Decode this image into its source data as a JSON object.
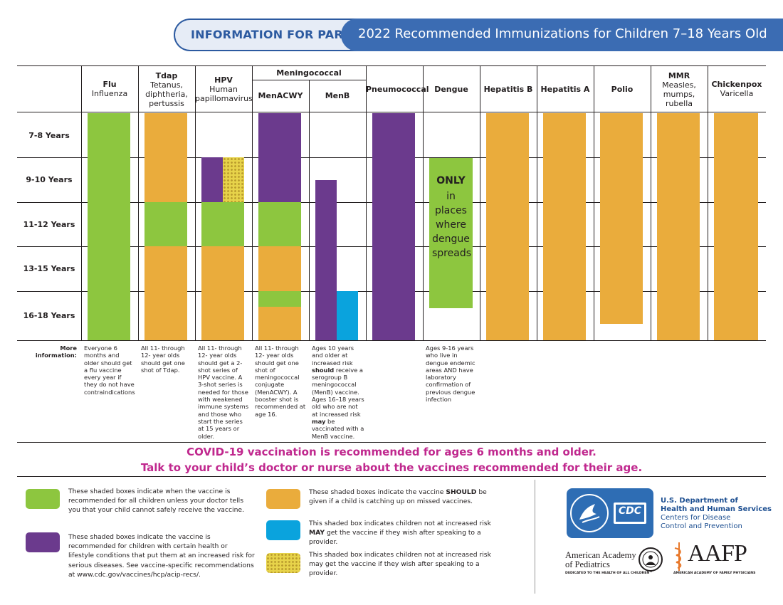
{
  "header": {
    "left_label": "INFORMATION FOR PARENTS",
    "title": "2022 Recommended Immunizations for Children 7–18 Years Old"
  },
  "colors": {
    "green": "#8dc63f",
    "orange": "#eaac3c",
    "purple": "#6b3a8d",
    "blue": "#0aa3dd",
    "yellow_dots": "#e7d34a",
    "covid": "#c0288e",
    "header_blue": "#3b6cb3"
  },
  "columns": {
    "flu": {
      "name": "Flu",
      "desc": "Influenza"
    },
    "tdap": {
      "name": "Tdap",
      "desc": "Tetanus, diphtheria, pertussis"
    },
    "hpv": {
      "name": "HPV",
      "desc": "Human papillomavirus"
    },
    "meningococcal": {
      "name": "Meningococcal"
    },
    "menacwy": {
      "name": "MenACWY"
    },
    "menb": {
      "name": "MenB"
    },
    "pneumococcal": {
      "name": "Pneumococcal"
    },
    "dengue": {
      "name": "Dengue"
    },
    "hepb": {
      "name": "Hepatitis B"
    },
    "hepa": {
      "name": "Hepatitis A"
    },
    "polio": {
      "name": "Polio"
    },
    "mmr": {
      "name": "MMR",
      "desc": "Measles, mumps, rubella"
    },
    "chickenpox": {
      "name": "Chickenpox",
      "desc": "Varicella"
    }
  },
  "rows": [
    "7-8 Years",
    "9-10 Years",
    "11-12 Years",
    "13-15 Years",
    "16-18 Years"
  ],
  "dengue_text": {
    "only": "ONLY",
    "rest": "in places where dengue spreads"
  },
  "more_info": {
    "label": "More information:",
    "flu": "Everyone 6 months and older should get a flu vaccine every year if they do not have contraindications",
    "tdap": "All 11- through 12- year olds should get one shot of Tdap.",
    "hpv": "All 11- through 12- year olds should get a 2-shot series of HPV vaccine. A 3-shot series is needed for those with weakened immune systems and those who start the series at 15 years or older.",
    "menacwy": "All 11- through 12- year olds should get one shot of meningococcal conjugate (MenACWY). A booster shot is recommended at age 16.",
    "menb_1": "Ages 10 years and older at increased risk ",
    "menb_should": "should",
    "menb_2": " receive a serogroup B meningococcal (MenB) vaccine. Ages 16–18 years old who are not at increased risk ",
    "menb_may": "may",
    "menb_3": " be vaccinated with a MenB vaccine.",
    "dengue": "Ages 9-16 years who live in dengue endemic areas AND have laboratory confirmation of previous dengue infection"
  },
  "covid": {
    "line1": "COVID-19 vaccination is recommended for ages 6 months and older.",
    "line2": "Talk to your child’s doctor or nurse about the vaccines recommended for their age."
  },
  "legend": {
    "green": "These shaded boxes indicate when the vaccine is recommended for all children unless your doctor tells you that your child cannot safely receive the vaccine.",
    "purple_1": "These shaded boxes indicate the vaccine is recommended for children with certain health or lifestyle conditions that put them at an increased risk for serious diseases. See vaccine-specific recommendations at ",
    "purple_link": "www.cdc.gov/vaccines/hcp/acip-recs/",
    "purple_2": ".",
    "orange_1": "These shaded boxes indicate the vaccine ",
    "orange_should": "SHOULD",
    "orange_2": " be given if a child is catching up on missed vaccines.",
    "blue_1": "This shaded box indicates children not at increased risk ",
    "blue_may": "MAY",
    "blue_2": " get the vaccine if they wish after speaking to a provider.",
    "dots": "This shaded box indicates children not at increased risk may get the vaccine if they wish after speaking to a provider."
  },
  "logos": {
    "cdc": "CDC",
    "hhs_1": "U.S. Department of",
    "hhs_2": "Health and Human Services",
    "hhs_3": "Centers for Disease",
    "hhs_4": "Control and Prevention",
    "aap_1": "American Academy",
    "aap_2": "of Pediatrics",
    "aap_3": "DEDICATED TO THE HEALTH OF ALL CHILDREN™",
    "aafp": "AAFP",
    "aafp_sub": "AMERICAN ACADEMY OF FAMILY PHYSICIANS"
  }
}
